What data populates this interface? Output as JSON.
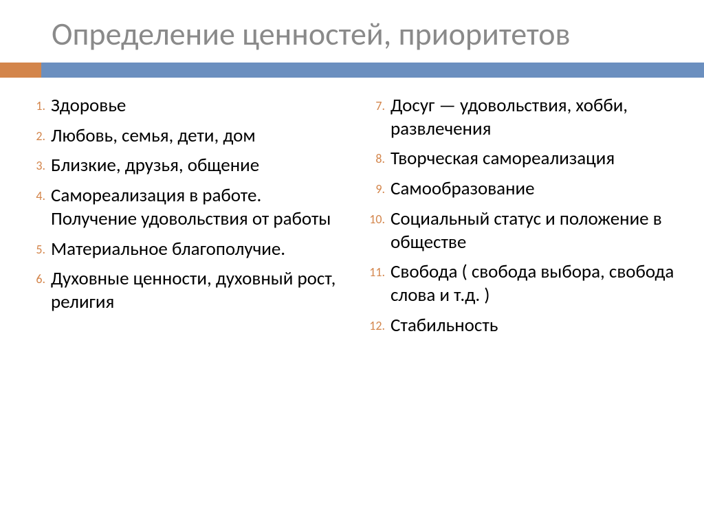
{
  "colors": {
    "title": "#8a8a8a",
    "accent": "#d3854b",
    "divider": "#6b8fbf",
    "number": "#d3854b",
    "text": "#000000",
    "background": "#ffffff"
  },
  "typography": {
    "title_fontsize": 46,
    "title_weight": 400,
    "body_fontsize": 27,
    "body_weight": 400,
    "number_fontsize": 18,
    "line_height": 1.25
  },
  "title": "Определение ценностей, приоритетов",
  "left_start": 1,
  "right_start": 7,
  "left_items": [
    "Здоровье",
    "Любовь, семья, дети, дом",
    "Близкие, друзья, общение",
    "Самореализация в работе. Получение удовольствия от работы",
    "Материальное благополучие.",
    "Духовные ценности, духовный рост, религия"
  ],
  "right_items": [
    "Досуг — удовольствия, хобби, развлечения",
    "Творческая самореализация",
    "Самообразование",
    "Социальный статус и положение в обществе",
    "Свобода ( свобода выбора, свобода слова и т.д. )",
    "Стабильность"
  ]
}
